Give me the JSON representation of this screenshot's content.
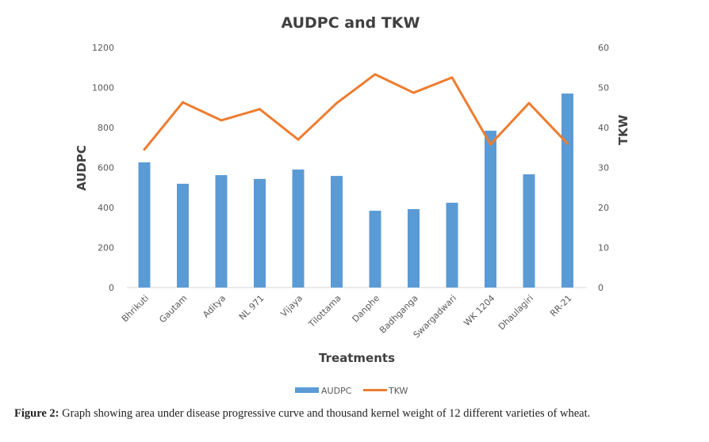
{
  "chart_data": {
    "type": "bar+line",
    "title": "AUDPC and TKW",
    "xlabel": "Treatments",
    "ylabel": "AUDPC",
    "y2label": "TKW",
    "categories": [
      "Bhrikuti",
      "Gautam",
      "Aditya",
      "NL 971",
      "Vijaya",
      "Tilottama",
      "Danphe",
      "Badhganga",
      "Swargadwari",
      "WK 1204",
      "Dhaulagiri",
      "RR-21"
    ],
    "series": [
      {
        "name": "AUDPC",
        "type": "bar",
        "axis": "left",
        "color": "#5B9BD5",
        "values": [
          626,
          519,
          562,
          543,
          590,
          558,
          384,
          392,
          424,
          784,
          566,
          970
        ]
      },
      {
        "name": "TKW",
        "type": "line",
        "axis": "right",
        "color": "#ED7D31",
        "values": [
          34.5,
          46.3,
          41.8,
          44.6,
          37.0,
          46.1,
          53.3,
          48.7,
          52.5,
          35.8,
          46.1,
          36.0
        ]
      }
    ],
    "ylim": [
      0,
      1200
    ],
    "yticks": [
      "0",
      "200",
      "400",
      "600",
      "800",
      "1000",
      "1200"
    ],
    "y2lim": [
      0,
      60
    ],
    "y2ticks": [
      "0",
      "10",
      "20",
      "30",
      "40",
      "50",
      "60"
    ],
    "grid": false,
    "legend": "bottom"
  },
  "caption": {
    "label": "Figure 2:",
    "text": " Graph showing area under disease progressive curve and thousand kernel weight of 12 different varieties of wheat."
  }
}
